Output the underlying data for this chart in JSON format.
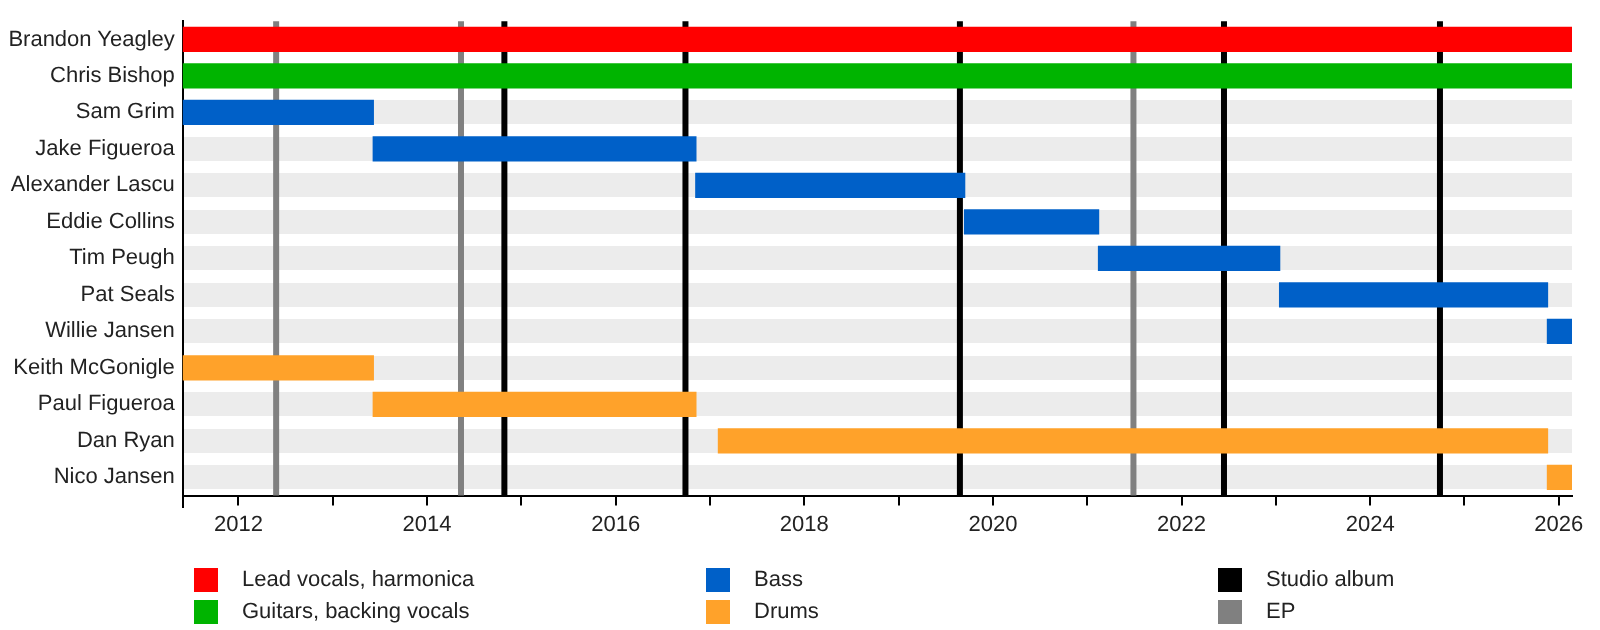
{
  "chart_data": {
    "type": "bar",
    "orientation": "horizontal",
    "grid": "y",
    "legend": "bottom",
    "categories": [
      "Brandon Yeagley",
      "Chris Bishop",
      "Sam Grim",
      "Jake Figueroa",
      "Alexander Lascu",
      "Eddie Collins",
      "Tim Peugh",
      "Pat Seals",
      "Willie Jansen",
      "Keith McGonigle",
      "Paul Figueroa",
      "Dan Ryan",
      "Nico Jansen"
    ],
    "series": [
      {
        "name": "Lead vocals, harmonica",
        "color": "#ff0000",
        "base": [
          2011.41,
          null,
          null,
          null,
          null,
          null,
          null,
          null,
          null,
          null,
          null,
          null,
          null
        ],
        "values": [
          14.73,
          null,
          null,
          null,
          null,
          null,
          null,
          null,
          null,
          null,
          null,
          null,
          null
        ]
      },
      {
        "name": "Guitars, backing vocals",
        "color": "#00b400",
        "base": [
          null,
          2011.41,
          null,
          null,
          null,
          null,
          null,
          null,
          null,
          null,
          null,
          null,
          null
        ],
        "values": [
          null,
          14.73,
          null,
          null,
          null,
          null,
          null,
          null,
          null,
          null,
          null,
          null,
          null
        ]
      },
      {
        "name": "Bass",
        "color": "#0060c8",
        "base": [
          null,
          null,
          2011.41,
          2013.43,
          2016.85,
          2019.7,
          2021.12,
          2023.04,
          2025.88,
          null,
          null,
          null,
          null
        ],
        "values": [
          null,
          null,
          2.02,
          3.42,
          2.85,
          1.42,
          1.92,
          2.84,
          0.26,
          null,
          null,
          null,
          null
        ]
      },
      {
        "name": "Drums",
        "color": "#ffa22a",
        "base": [
          null,
          null,
          null,
          null,
          null,
          null,
          null,
          null,
          null,
          2011.41,
          2013.43,
          2017.09,
          2025.88
        ],
        "values": [
          null,
          null,
          null,
          null,
          null,
          null,
          null,
          null,
          null,
          2.02,
          3.42,
          8.79,
          0.26
        ]
      }
    ],
    "ref_lines": [
      {
        "axis": "x",
        "value": 2014.82,
        "label": "Studio album",
        "color": "#000000"
      },
      {
        "axis": "x",
        "value": 2016.74,
        "color": "#000000"
      },
      {
        "axis": "x",
        "value": 2019.65,
        "color": "#000000"
      },
      {
        "axis": "x",
        "value": 2022.45,
        "color": "#000000"
      },
      {
        "axis": "x",
        "value": 2024.74,
        "color": "#000000"
      },
      {
        "axis": "x",
        "value": 2012.4,
        "label": "EP",
        "color": "#808080"
      },
      {
        "axis": "x",
        "value": 2014.36,
        "color": "#808080"
      },
      {
        "axis": "x",
        "value": 2021.49,
        "color": "#808080"
      }
    ],
    "xlim": [
      2011.41,
      2026.14
    ],
    "xticks": [
      2012,
      {
        "value": 2013,
        "label": null
      },
      2014,
      {
        "value": 2015,
        "label": null
      },
      2016,
      {
        "value": 2017,
        "label": null
      },
      2018,
      {
        "value": 2019,
        "label": null
      },
      2020,
      {
        "value": 2021,
        "label": null
      },
      2022,
      {
        "value": 2023,
        "label": null
      },
      2024,
      {
        "value": 2025,
        "label": null
      },
      2026
    ]
  }
}
